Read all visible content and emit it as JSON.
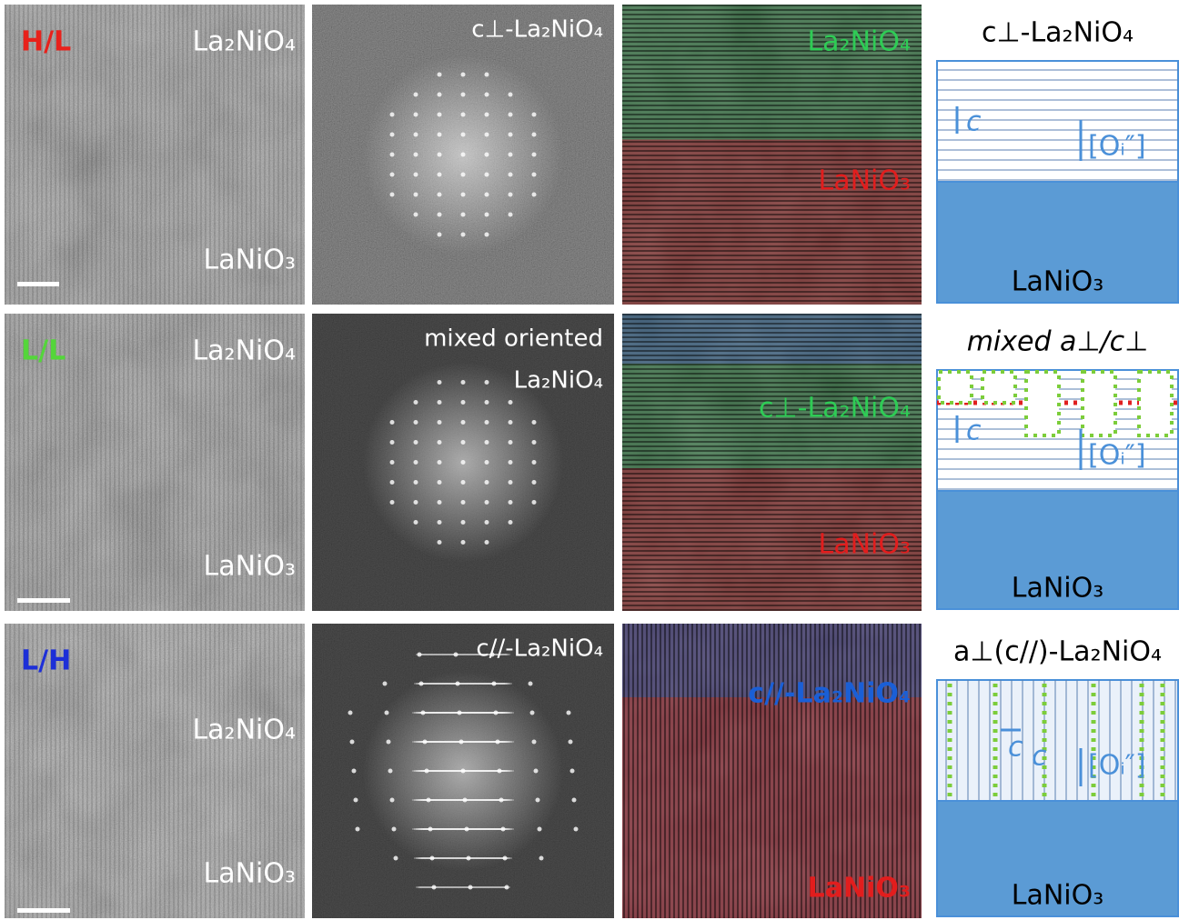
{
  "rows": [
    {
      "tag": "H/L",
      "hrtem": {
        "top": "La₂NiO₄",
        "bottom": "LaNiO₃"
      },
      "fft": [
        "c⊥-La₂NiO₄"
      ],
      "map": {
        "top": "La₂NiO₄",
        "bottom": "LaNiO₃"
      },
      "schematic": {
        "title": "c⊥-La₂NiO₄",
        "c": "c",
        "defect": "[Oᵢ″]",
        "substrate": "LaNiO₃"
      }
    },
    {
      "tag": "L/L",
      "hrtem": {
        "top": "La₂NiO₄",
        "bottom": "LaNiO₃"
      },
      "fft": [
        "mixed oriented",
        "La₂NiO₄"
      ],
      "map": {
        "top": "c⊥-La₂NiO₄",
        "bottom": "LaNiO₃"
      },
      "schematic": {
        "title": "mixed a⊥/c⊥",
        "c": "c",
        "defect": "[Oᵢ″]",
        "substrate": "LaNiO₃"
      }
    },
    {
      "tag": "L/H",
      "hrtem": {
        "top": "La₂NiO₄",
        "bottom": "LaNiO₃"
      },
      "fft": [
        "c//-La₂NiO₄"
      ],
      "map": {
        "top": "c//-La₂NiO₄",
        "bottom": "LaNiO₃"
      },
      "schematic": {
        "title": "a⊥(c//)-La₂NiO₄",
        "c": "c",
        "c2": "c",
        "defect": "[Oᵢ″]",
        "substrate": "LaNiO₃"
      }
    }
  ]
}
